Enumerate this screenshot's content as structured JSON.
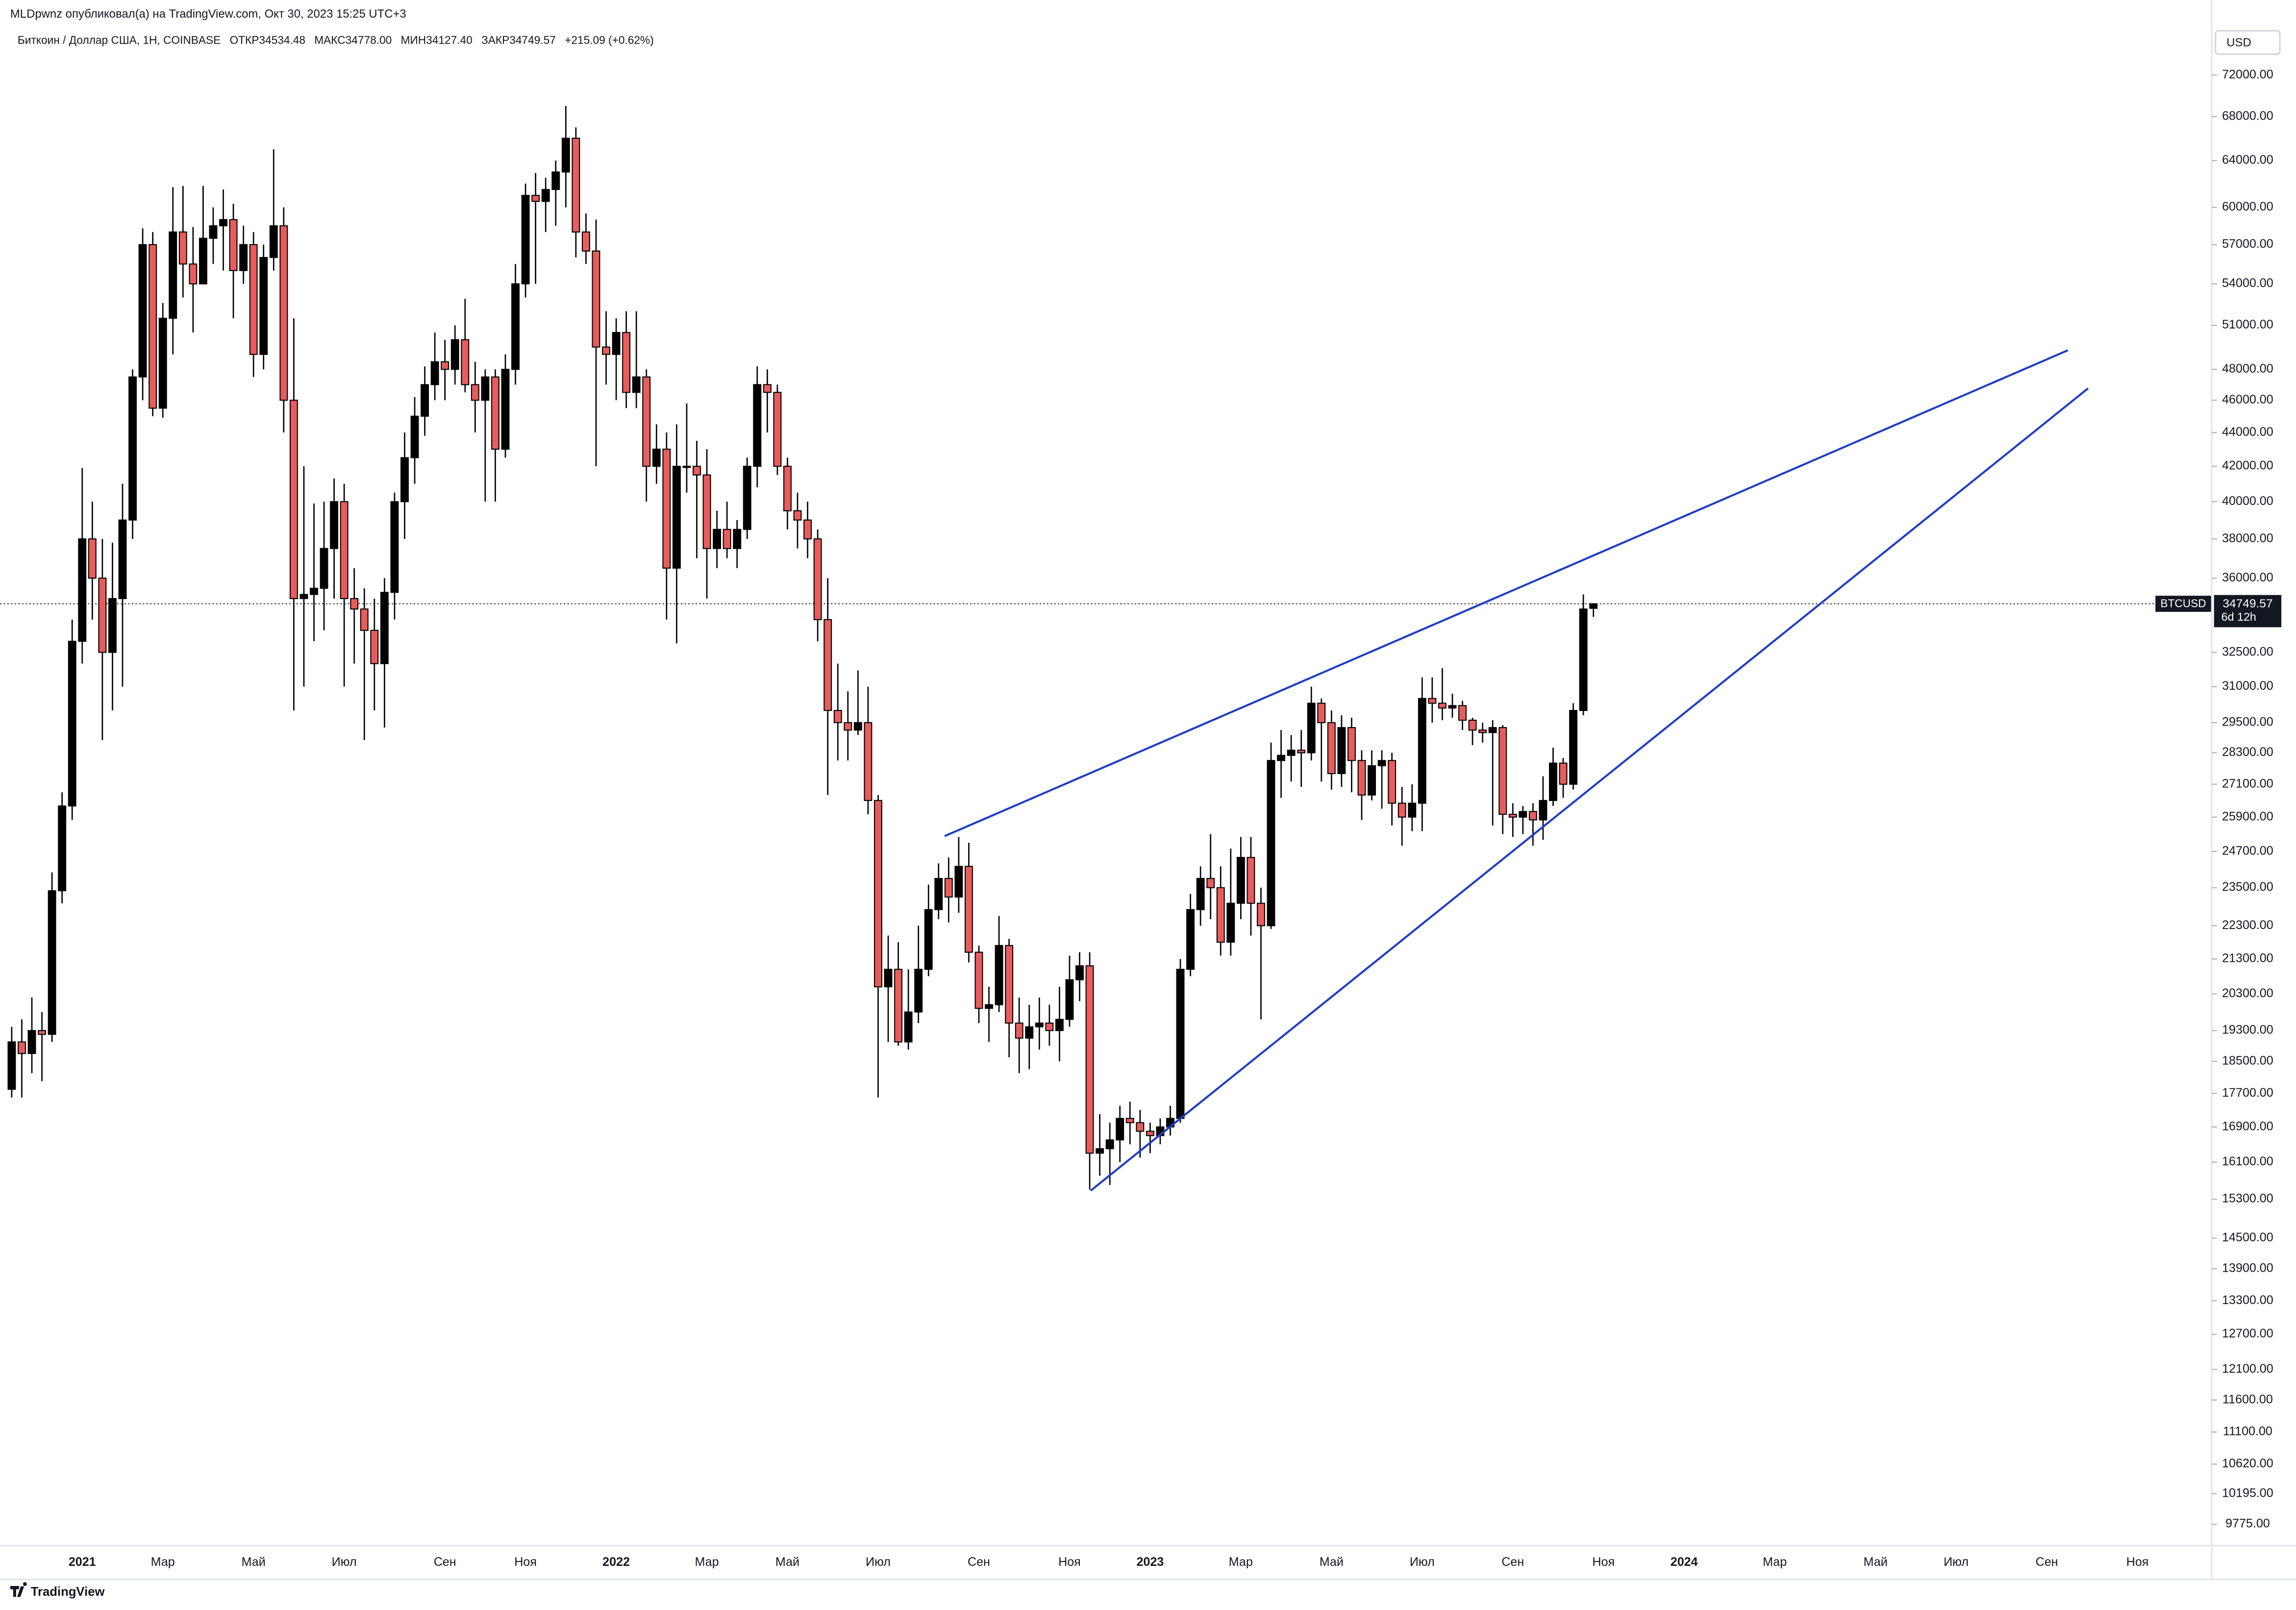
{
  "header": {
    "author_line": "MLDpwnz опубликовал(а) на TradingView.com, Окт 30, 2023 15:25 UTC+3",
    "symbol": "Биткоин / Доллар США, 1Н, COINBASE",
    "ohlc": [
      "ОТКР34534.48",
      "МАКС34778.00",
      "МИН34127.40",
      "ЗАКР34749.57"
    ],
    "change": "+215.09 (+0.62%)"
  },
  "footer": {
    "brand": "TradingView"
  },
  "chart_data": {
    "type": "candlestick",
    "currency": "USD",
    "log_scale": true,
    "grid": false,
    "up_color": "#000000",
    "down_color": "#e85c5c",
    "wick_color": "#000000",
    "ylim": [
      9500,
      77000
    ],
    "yticks": [
      {
        "value": 72000,
        "label": "72000.00"
      },
      {
        "value": 68000,
        "label": "68000.00"
      },
      {
        "value": 64000,
        "label": "64000.00"
      },
      {
        "value": 60000,
        "label": "60000.00"
      },
      {
        "value": 57000,
        "label": "57000.00"
      },
      {
        "value": 54000,
        "label": "54000.00"
      },
      {
        "value": 51000,
        "label": "51000.00"
      },
      {
        "value": 48000,
        "label": "48000.00"
      },
      {
        "value": 46000,
        "label": "46000.00"
      },
      {
        "value": 44000,
        "label": "44000.00"
      },
      {
        "value": 42000,
        "label": "42000.00"
      },
      {
        "value": 40000,
        "label": "40000.00"
      },
      {
        "value": 38000,
        "label": "38000.00"
      },
      {
        "value": 36000,
        "label": "36000.00"
      },
      {
        "value": 32500,
        "label": "32500.00"
      },
      {
        "value": 31000,
        "label": "31000.00"
      },
      {
        "value": 29500,
        "label": "29500.00"
      },
      {
        "value": 28300,
        "label": "28300.00"
      },
      {
        "value": 27100,
        "label": "27100.00"
      },
      {
        "value": 25900,
        "label": "25900.00"
      },
      {
        "value": 24700,
        "label": "24700.00"
      },
      {
        "value": 23500,
        "label": "23500.00"
      },
      {
        "value": 22300,
        "label": "22300.00"
      },
      {
        "value": 21300,
        "label": "21300.00"
      },
      {
        "value": 20300,
        "label": "20300.00"
      },
      {
        "value": 19300,
        "label": "19300.00"
      },
      {
        "value": 18500,
        "label": "18500.00"
      },
      {
        "value": 17700,
        "label": "17700.00"
      },
      {
        "value": 16900,
        "label": "16900.00"
      },
      {
        "value": 16100,
        "label": "16100.00"
      },
      {
        "value": 15300,
        "label": "15300.00"
      },
      {
        "value": 14500,
        "label": "14500.00"
      },
      {
        "value": 13900,
        "label": "13900.00"
      },
      {
        "value": 13300,
        "label": "13300.00"
      },
      {
        "value": 12700,
        "label": "12700.00"
      },
      {
        "value": 12100,
        "label": "12100.00"
      },
      {
        "value": 11600,
        "label": "11600.00"
      },
      {
        "value": 11100,
        "label": "11100.00"
      },
      {
        "value": 10620,
        "label": "10620.00"
      },
      {
        "value": 10195,
        "label": "10195.00"
      },
      {
        "value": 9775,
        "label": "9775.00"
      }
    ],
    "categories": [
      null,
      null,
      null,
      null,
      null,
      null,
      null,
      "2021",
      null,
      null,
      null,
      null,
      null,
      null,
      null,
      "Мар",
      null,
      null,
      null,
      null,
      null,
      null,
      null,
      null,
      "Май",
      null,
      null,
      null,
      null,
      null,
      null,
      null,
      null,
      "Июл",
      null,
      null,
      null,
      null,
      null,
      null,
      null,
      null,
      null,
      "Сен",
      null,
      null,
      null,
      null,
      null,
      null,
      null,
      "Ноя",
      null,
      null,
      null,
      null,
      null,
      null,
      null,
      null,
      "2022",
      null,
      null,
      null,
      null,
      null,
      null,
      null,
      null,
      "Мар",
      null,
      null,
      null,
      null,
      null,
      null,
      null,
      "Май",
      null,
      null,
      null,
      null,
      null,
      null,
      null,
      null,
      "Июл",
      null,
      null,
      null,
      null,
      null,
      null,
      null,
      null,
      null,
      "Сен",
      null,
      null,
      null,
      null,
      null,
      null,
      null,
      null,
      "Ноя",
      null,
      null,
      null,
      null,
      null,
      null,
      null,
      "2023",
      null,
      null,
      null,
      null,
      null,
      null,
      null,
      null,
      "Мар",
      null,
      null,
      null,
      null,
      null,
      null,
      null,
      null,
      "Май",
      null,
      null,
      null,
      null,
      null,
      null,
      null,
      null,
      "Июл",
      null,
      null,
      null,
      null,
      null,
      null,
      null,
      null,
      "Сен",
      null,
      null,
      null,
      null,
      null,
      null,
      null,
      null,
      "Ноя",
      null,
      null,
      null,
      null,
      null,
      null,
      null,
      "2024",
      null,
      null,
      null,
      null,
      null,
      null,
      null,
      null,
      "Мар",
      null,
      null,
      null,
      null,
      null,
      null,
      null,
      null,
      null,
      "Май",
      null,
      null,
      null,
      null,
      null,
      null,
      null,
      "Июл",
      null,
      null,
      null,
      null,
      null,
      null,
      null,
      null,
      "Сен",
      null,
      null,
      null,
      null,
      null,
      null,
      null,
      null,
      "Ноя",
      null,
      null,
      null,
      null,
      null,
      null
    ],
    "open": [
      17800,
      19000,
      18700,
      19300,
      19200,
      23400,
      26300,
      33000,
      38000,
      36000,
      32500,
      35000,
      39000,
      47500,
      57000,
      45500,
      51500,
      58000,
      55500,
      54000,
      57500,
      58500,
      59000,
      55000,
      57000,
      49000,
      56000,
      58500,
      46000,
      35000,
      35200,
      35500,
      37500,
      40000,
      35000,
      34500,
      33500,
      32000,
      35300,
      40000,
      42500,
      45000,
      47000,
      48500,
      48000,
      50000,
      47000,
      46000,
      47500,
      43000,
      48000,
      54000,
      61000,
      60500,
      61500,
      63000,
      66000,
      58000,
      56500,
      49500,
      49000,
      50500,
      46500,
      47500,
      42000,
      43000,
      36500,
      42000,
      42000,
      41500,
      37500,
      38500,
      37500,
      38500,
      42000,
      47000,
      46500,
      42000,
      39500,
      39000,
      38000,
      34000,
      30000,
      29500,
      29200,
      29500,
      26500,
      20500,
      21000,
      19000,
      19800,
      21000,
      22800,
      23800,
      23200,
      24200,
      21500,
      19900,
      20000,
      21700,
      19500,
      19100,
      19400,
      19500,
      19300,
      19600,
      20700,
      21100,
      16300,
      16400,
      16600,
      17100,
      17000,
      16800,
      16700,
      16900,
      17100,
      21000,
      22800,
      23800,
      23500,
      21800,
      23000,
      24500,
      23000,
      22300,
      28000,
      28200,
      28400,
      28300,
      30300,
      29500,
      27500,
      29300,
      28000,
      26700,
      27800,
      28000,
      26400,
      25900,
      26400,
      30500,
      30300,
      30100,
      30200,
      29600,
      29200,
      29100,
      29300,
      26000,
      25900,
      26100,
      25800,
      26500,
      27900,
      27100,
      30000,
      34534.48,
      null,
      null,
      null,
      null,
      null,
      null,
      null,
      null,
      null,
      null,
      null,
      null,
      null,
      null,
      null,
      null,
      null,
      null,
      null,
      null,
      null,
      null,
      null,
      null,
      null,
      null,
      null,
      null,
      null,
      null,
      null,
      null,
      null,
      null,
      null,
      null,
      null,
      null,
      null,
      null,
      null,
      null,
      null,
      null,
      null,
      null,
      null,
      null,
      null,
      null,
      null,
      null,
      null,
      null,
      null,
      null,
      null,
      null,
      null,
      null
    ],
    "high": [
      19400,
      19600,
      20200,
      19800,
      24000,
      26800,
      34000,
      41900,
      40000,
      38000,
      37800,
      41000,
      48000,
      58300,
      58000,
      52600,
      61700,
      61800,
      58400,
      61800,
      60000,
      61500,
      60300,
      58500,
      58000,
      57000,
      65000,
      60000,
      51500,
      42000,
      39900,
      40000,
      41300,
      41000,
      36500,
      35500,
      35000,
      36000,
      40500,
      44000,
      46200,
      48200,
      50500,
      50000,
      51000,
      52900,
      48500,
      48000,
      48000,
      49000,
      55500,
      62000,
      62900,
      62500,
      64000,
      69000,
      67000,
      59500,
      59000,
      52000,
      51500,
      52000,
      52000,
      48000,
      44500,
      44000,
      44500,
      45800,
      43500,
      43000,
      39500,
      40000,
      39000,
      42500,
      48200,
      48000,
      47000,
      42500,
      40500,
      40000,
      38500,
      36000,
      32000,
      30800,
      31700,
      31000,
      26700,
      22000,
      21800,
      21000,
      22300,
      23600,
      24300,
      24500,
      25200,
      25000,
      21700,
      20500,
      22600,
      21900,
      20200,
      20000,
      20200,
      20000,
      20500,
      21400,
      21500,
      21500,
      17200,
      17000,
      17400,
      17500,
      17300,
      17000,
      17100,
      17400,
      21300,
      23300,
      24200,
      25300,
      24200,
      24800,
      25200,
      25200,
      23500,
      28700,
      29200,
      29000,
      29200,
      31000,
      30500,
      30000,
      29800,
      29700,
      28400,
      28400,
      28400,
      28300,
      27000,
      27100,
      31400,
      31400,
      31800,
      30700,
      30400,
      29700,
      29500,
      29600,
      29400,
      26400,
      26300,
      26400,
      27400,
      28500,
      28100,
      30300,
      35200,
      34778,
      null,
      null,
      null,
      null,
      null,
      null,
      null,
      null,
      null,
      null,
      null,
      null,
      null,
      null,
      null,
      null,
      null,
      null,
      null,
      null,
      null,
      null,
      null,
      null,
      null,
      null,
      null,
      null,
      null,
      null,
      null,
      null,
      null,
      null,
      null,
      null,
      null,
      null,
      null,
      null,
      null,
      null,
      null,
      null,
      null,
      null,
      null,
      null,
      null,
      null,
      null,
      null,
      null,
      null,
      null,
      null,
      null,
      null,
      null,
      null
    ],
    "low": [
      17600,
      17600,
      18200,
      18000,
      19000,
      23000,
      25800,
      32000,
      34000,
      28800,
      30000,
      31000,
      38000,
      46000,
      45000,
      44900,
      49000,
      53000,
      50500,
      54000,
      55500,
      55000,
      51500,
      54000,
      47500,
      48000,
      55000,
      44000,
      30000,
      31000,
      33000,
      33500,
      35000,
      31000,
      32000,
      28800,
      30000,
      29300,
      34000,
      38000,
      41000,
      43800,
      46000,
      46000,
      47000,
      46500,
      44000,
      40000,
      40000,
      42500,
      47000,
      53000,
      54000,
      58000,
      58500,
      60000,
      56000,
      55500,
      42000,
      47000,
      46000,
      45500,
      45500,
      40000,
      41000,
      34000,
      32900,
      40500,
      37000,
      35000,
      36500,
      37000,
      36500,
      38000,
      40800,
      44000,
      41500,
      38500,
      37500,
      37000,
      33000,
      26700,
      28000,
      28000,
      29000,
      26000,
      17600,
      19000,
      18900,
      18800,
      19500,
      20800,
      22500,
      22400,
      22700,
      21200,
      19500,
      19000,
      19800,
      18600,
      18200,
      18300,
      18800,
      18900,
      18500,
      19400,
      20100,
      15500,
      15800,
      15600,
      16100,
      16500,
      16200,
      16300,
      16500,
      16700,
      17000,
      20800,
      22300,
      22500,
      21400,
      21400,
      22500,
      22000,
      19600,
      22200,
      26600,
      27200,
      27000,
      28000,
      27200,
      26900,
      27000,
      26800,
      25800,
      26500,
      26200,
      25600,
      24900,
      25400,
      25400,
      29500,
      29600,
      29700,
      29200,
      28600,
      28700,
      25600,
      25300,
      25200,
      25300,
      24900,
      25100,
      26300,
      26600,
      26900,
      29800,
      34127.4,
      null,
      null,
      null,
      null,
      null,
      null,
      null,
      null,
      null,
      null,
      null,
      null,
      null,
      null,
      null,
      null,
      null,
      null,
      null,
      null,
      null,
      null,
      null,
      null,
      null,
      null,
      null,
      null,
      null,
      null,
      null,
      null,
      null,
      null,
      null,
      null,
      null,
      null,
      null,
      null,
      null,
      null,
      null,
      null,
      null,
      null,
      null,
      null,
      null,
      null,
      null,
      null,
      null,
      null,
      null,
      null,
      null,
      null,
      null,
      null
    ],
    "close": [
      19000,
      18700,
      19300,
      19200,
      23400,
      26300,
      33000,
      38000,
      36000,
      32500,
      35000,
      39000,
      47500,
      57000,
      45500,
      51500,
      58000,
      55500,
      54000,
      57500,
      58500,
      59000,
      55000,
      57000,
      49000,
      56000,
      58500,
      46000,
      35000,
      35200,
      35500,
      37500,
      40000,
      35000,
      34500,
      33500,
      32000,
      35300,
      40000,
      42500,
      45000,
      47000,
      48500,
      48000,
      50000,
      47000,
      46000,
      47500,
      43000,
      48000,
      54000,
      61000,
      60500,
      61500,
      63000,
      66000,
      58000,
      56500,
      49500,
      49000,
      50500,
      46500,
      47500,
      42000,
      43000,
      36500,
      42000,
      42000,
      41500,
      37500,
      38500,
      37500,
      38500,
      42000,
      47000,
      46500,
      42000,
      39500,
      39000,
      38000,
      34000,
      30000,
      29500,
      29200,
      29500,
      26500,
      20500,
      21000,
      19000,
      19800,
      21000,
      22800,
      23800,
      23200,
      24200,
      21500,
      19900,
      20000,
      21700,
      19500,
      19100,
      19400,
      19500,
      19300,
      19600,
      20700,
      21100,
      16300,
      16400,
      16600,
      17100,
      17000,
      16800,
      16700,
      16900,
      17100,
      21000,
      22800,
      23800,
      23500,
      21800,
      23000,
      24500,
      23000,
      22300,
      28000,
      28200,
      28400,
      28300,
      30300,
      29500,
      27500,
      29300,
      28000,
      26700,
      27800,
      28000,
      26400,
      25900,
      26400,
      30500,
      30300,
      30100,
      30200,
      29600,
      29200,
      29100,
      29300,
      26000,
      25900,
      26100,
      25800,
      26500,
      27900,
      27100,
      30000,
      34500,
      34749.57,
      null,
      null,
      null,
      null,
      null,
      null,
      null,
      null,
      null,
      null,
      null,
      null,
      null,
      null,
      null,
      null,
      null,
      null,
      null,
      null,
      null,
      null,
      null,
      null,
      null,
      null,
      null,
      null,
      null,
      null,
      null,
      null,
      null,
      null,
      null,
      null,
      null,
      null,
      null,
      null,
      null,
      null,
      null,
      null,
      null,
      null,
      null,
      null,
      null,
      null,
      null,
      null,
      null,
      null,
      null,
      null,
      null,
      null,
      null,
      null
    ],
    "trendlines": [
      {
        "color": "#1f3fc6",
        "start": {
          "x": 92.6,
          "y": 25230
        },
        "end": {
          "x": 204.1,
          "y": 49280
        }
      },
      {
        "color": "#1f3fc6",
        "start": {
          "x": 107.1,
          "y": 15480
        },
        "end": {
          "x": 206.1,
          "y": 46760
        }
      }
    ],
    "symbol_tag": "BTCUSD",
    "last_price": 34749.57,
    "countdown": "6d 12h"
  }
}
